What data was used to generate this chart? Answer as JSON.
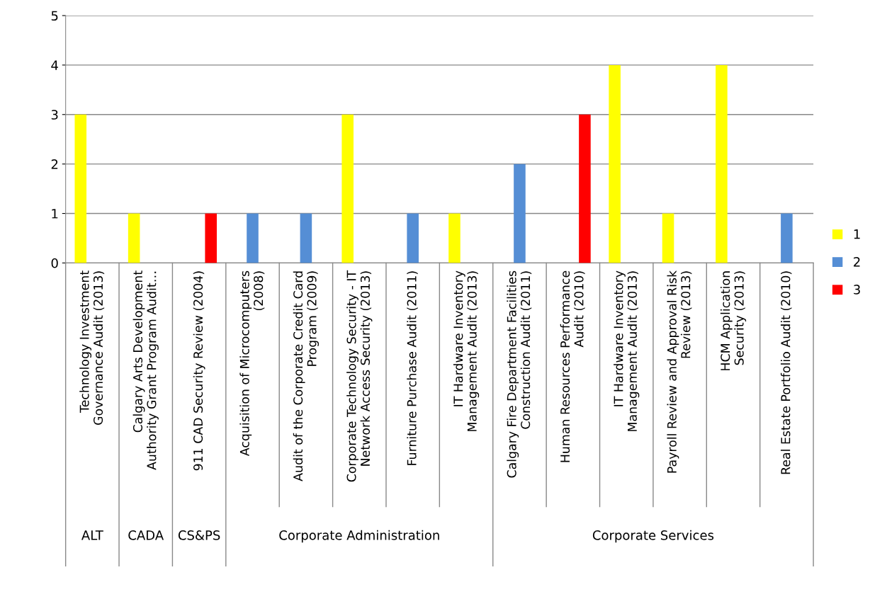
{
  "chart_data": {
    "type": "bar",
    "categories": [
      "Technology Investment\nGovernance Audit (2013)",
      "Calgary Arts Development\nAuthority Grant Program Audit…",
      "911 CAD Security Review (2004)",
      "Acquisition of Microcomputers\n(2008)",
      "Audit of the Corporate Credit Card\nProgram (2009)",
      "Corporate Technology Security - IT\nNetwork Access Security (2013)",
      "Furniture Purchase Audit (2011)",
      "IT Hardware Inventory\nManagement Audit (2013)",
      "Calgary Fire Department Facilities\nConstruction Audit (2011)",
      "Human Resources Performance\nAudit (2010)",
      "IT Hardware Inventory\nManagement Audit (2013)",
      "Payroll Review and Approval Risk\nReview (2013)",
      "HCM Application\nSecurity (2013)",
      "Real Estate Portfolio Audit (2010)"
    ],
    "series": [
      {
        "name": "1",
        "color": "#ffff00",
        "values": [
          3,
          1,
          null,
          null,
          null,
          3,
          null,
          1,
          null,
          null,
          4,
          1,
          4,
          null
        ]
      },
      {
        "name": "2",
        "color": "#558ed5",
        "values": [
          null,
          null,
          null,
          1,
          1,
          null,
          1,
          null,
          2,
          null,
          null,
          null,
          null,
          1
        ]
      },
      {
        "name": "3",
        "color": "#ff0000",
        "values": [
          null,
          null,
          1,
          null,
          null,
          null,
          null,
          null,
          null,
          3,
          null,
          null,
          null,
          null
        ]
      }
    ],
    "annotations": [
      "ALT",
      "CADA",
      "CS&PS",
      "Corporate Administration",
      "Corporate Services"
    ],
    "ylim": [
      0,
      5
    ],
    "yticks": [
      0,
      1,
      2,
      3,
      4,
      5
    ],
    "grid": "y",
    "legend": "right"
  }
}
